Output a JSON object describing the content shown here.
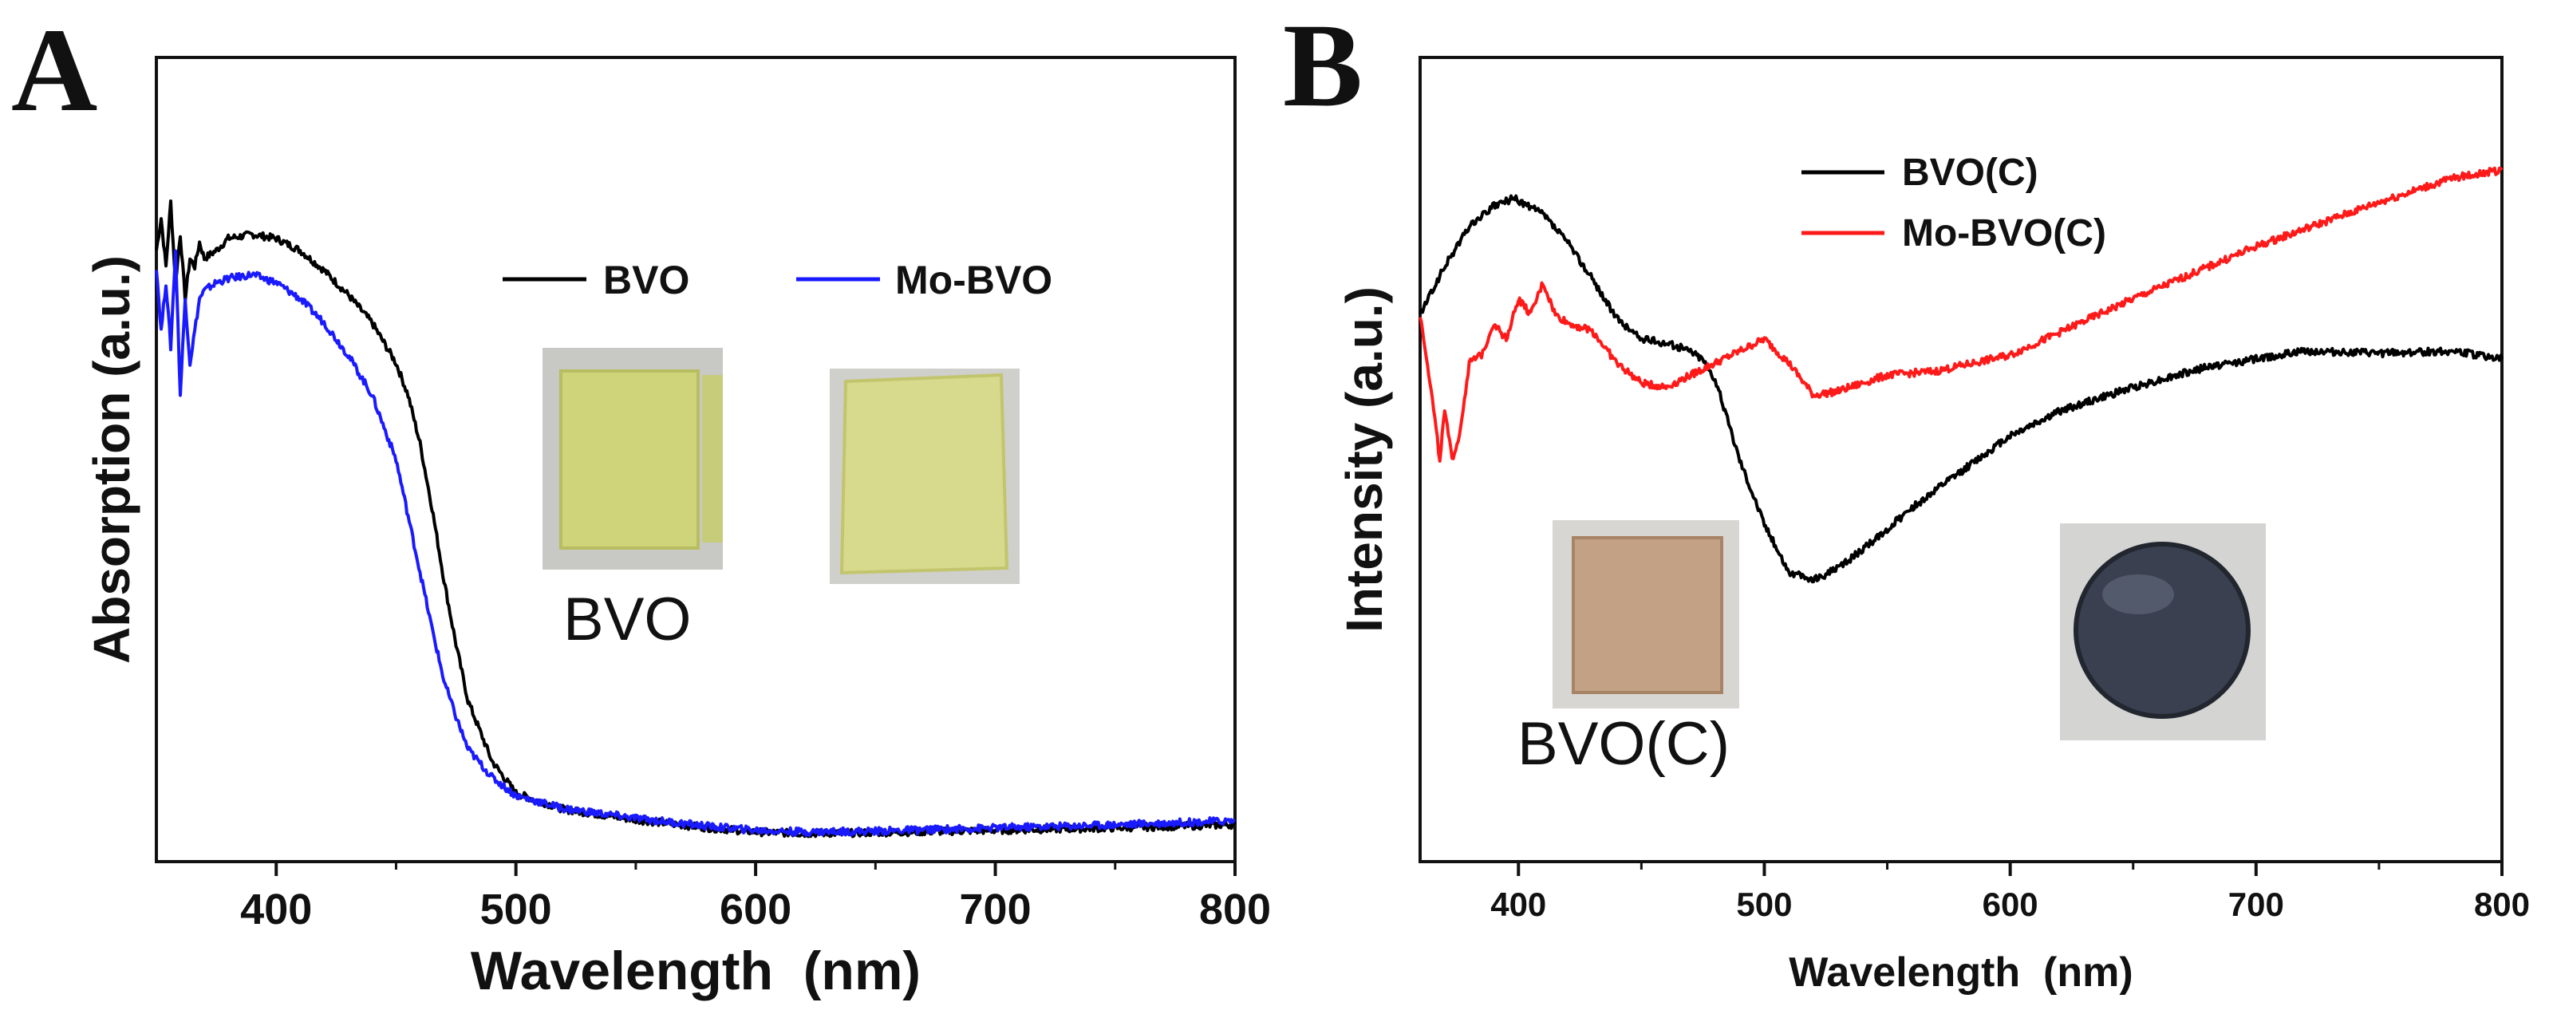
{
  "figure": {
    "panel_a_label": "A",
    "panel_b_label": "B"
  },
  "colors": {
    "bvo": "#000000",
    "mo_bvo_a": "#1a1aff",
    "mo_bvo_b": "#ff1a1a",
    "axis": "#111111"
  },
  "chart_data": [
    {
      "panel": "A",
      "type": "line",
      "title": "",
      "xlabel": "Wavelength  (nm)",
      "ylabel": "Absorption (a.u.)",
      "xlim": [
        350,
        800
      ],
      "ylim": [
        0,
        100
      ],
      "xticks": [
        400,
        500,
        600,
        700,
        800
      ],
      "legend": {
        "placement": "top-right",
        "entries": [
          "BVO",
          "Mo-BVO"
        ]
      },
      "series": [
        {
          "name": "BVO",
          "color": "#000000",
          "x": [
            350,
            352,
            354,
            356,
            358,
            360,
            362,
            364,
            366,
            368,
            370,
            375,
            380,
            390,
            400,
            410,
            420,
            430,
            440,
            450,
            455,
            460,
            465,
            470,
            475,
            480,
            490,
            500,
            520,
            550,
            580,
            600,
            620,
            650,
            700,
            750,
            800
          ],
          "y": [
            76,
            80,
            74,
            82,
            72,
            78,
            70,
            75,
            74,
            77,
            75,
            76,
            77.5,
            78,
            77.5,
            76,
            73.5,
            70.5,
            67,
            62,
            58,
            52,
            44,
            35,
            27,
            20,
            12.5,
            8.5,
            6.5,
            5.2,
            4.2,
            3.7,
            3.5,
            3.6,
            3.9,
            4.2,
            4.6
          ]
        },
        {
          "name": "Mo-BVO",
          "color": "#1a1aff",
          "x": [
            350,
            352,
            354,
            356,
            358,
            360,
            362,
            364,
            366,
            368,
            370,
            375,
            380,
            390,
            400,
            410,
            420,
            430,
            440,
            450,
            455,
            460,
            465,
            470,
            475,
            480,
            490,
            500,
            520,
            550,
            580,
            600,
            620,
            650,
            700,
            750,
            800
          ],
          "y": [
            74,
            66,
            72,
            64,
            76,
            58,
            70,
            62,
            66,
            70,
            71,
            72,
            72.5,
            73,
            72,
            70,
            67,
            63,
            58,
            50,
            43,
            36,
            29,
            22.5,
            18,
            14,
            10.5,
            8.2,
            6.6,
            5.4,
            4.4,
            3.9,
            3.7,
            3.8,
            4.2,
            4.6,
            5.1
          ]
        }
      ]
    },
    {
      "panel": "B",
      "type": "line",
      "title": "",
      "xlabel": "Wavelength  (nm)",
      "ylabel": "Intensity (a.u.)",
      "xlim": [
        360,
        800
      ],
      "ylim": [
        0,
        100
      ],
      "xticks": [
        400,
        500,
        600,
        700,
        800
      ],
      "legend": {
        "placement": "top-center",
        "entries": [
          "BVO(C)",
          "Mo-BVO(C)"
        ]
      },
      "series": [
        {
          "name": "BVO(C)",
          "color": "#000000",
          "x": [
            360,
            370,
            380,
            390,
            398,
            410,
            420,
            430,
            440,
            450,
            460,
            470,
            475,
            480,
            490,
            500,
            510,
            520,
            530,
            545,
            560,
            580,
            600,
            620,
            650,
            680,
            700,
            720,
            750,
            780,
            800
          ],
          "y": [
            68,
            74,
            79,
            81.5,
            82.5,
            80.5,
            77,
            72.5,
            67.5,
            65,
            64.5,
            63.5,
            62.5,
            60,
            50,
            42,
            36,
            35,
            36.5,
            40,
            44,
            48.5,
            53,
            56,
            59,
            61.5,
            62.5,
            63.5,
            63.2,
            63.5,
            62.5
          ]
        },
        {
          "name": "Mo-BVO(C)",
          "color": "#ff1a1a",
          "x": [
            360,
            363,
            366,
            368,
            370,
            373,
            376,
            380,
            385,
            390,
            395,
            400,
            405,
            410,
            415,
            420,
            430,
            440,
            450,
            460,
            470,
            480,
            490,
            500,
            510,
            520,
            530,
            550,
            570,
            600,
            650,
            700,
            750,
            780,
            800
          ],
          "y": [
            68,
            62,
            55,
            50,
            56,
            50,
            53,
            62,
            63,
            67,
            65,
            70,
            68,
            72,
            68,
            67,
            66,
            62,
            59.5,
            59,
            60.5,
            62,
            63.5,
            65,
            62,
            58,
            58.5,
            60.5,
            61,
            63,
            70,
            76.5,
            82,
            85,
            86
          ]
        }
      ]
    }
  ],
  "insets": {
    "a_caption": "BVO",
    "b_caption": "BVO(C)"
  }
}
